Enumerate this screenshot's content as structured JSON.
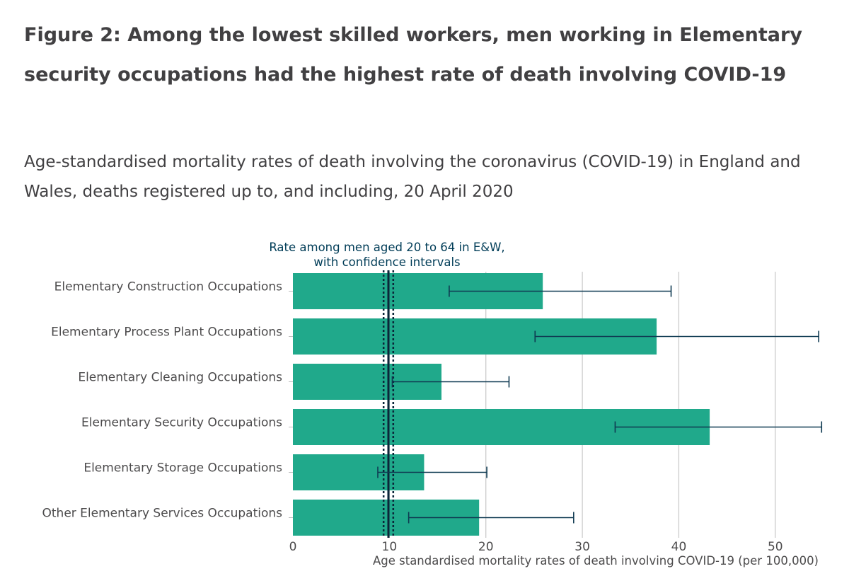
{
  "header": {
    "title": "Figure 2: Among the lowest skilled workers, men working in Elementary security occupations had the highest rate of death involving COVID-19",
    "subtitle": "Age-standardised mortality rates of death involving the coronavirus (COVID-19) in England and Wales, deaths registered up to, and including, 20 April 2020"
  },
  "chart_data": {
    "type": "bar",
    "orientation": "horizontal",
    "categories": [
      "Elementary Construction Occupations",
      "Elementary Process Plant Occupations",
      "Elementary Cleaning Occupations",
      "Elementary Security Occupations",
      "Elementary Storage Occupations",
      "Other Elementary Services Occupations"
    ],
    "values": [
      25.9,
      37.7,
      15.4,
      43.2,
      13.6,
      19.3
    ],
    "ci_lower": [
      16.2,
      25.1,
      10.3,
      33.4,
      8.8,
      12.0
    ],
    "ci_upper": [
      39.2,
      54.5,
      22.4,
      54.8,
      20.1,
      29.1
    ],
    "reference": {
      "value": 9.9,
      "lower": 9.4,
      "upper": 10.4,
      "label_line1": "Rate among men aged 20 to 64 in E&W,",
      "label_line2": "with confidence intervals"
    },
    "xlim": [
      0,
      55
    ],
    "xticks": [
      "0",
      "10",
      "20",
      "30",
      "40",
      "50"
    ],
    "xtick_values": [
      0,
      10,
      20,
      30,
      40,
      50
    ],
    "xlabel": "Age standardised mortality rates of death involving COVID-19 (per 100,000)",
    "grid": true,
    "colors": {
      "bar": "#20a98b",
      "error": "#0f3a52",
      "reference": "#0b2639",
      "grid": "#c8c8c8"
    }
  }
}
